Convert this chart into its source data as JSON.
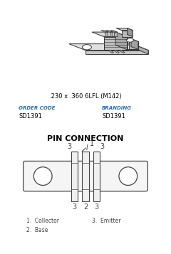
{
  "bg_color": "#ffffff",
  "border_color": "#555555",
  "text_color": "#000000",
  "blue_color": "#2e6da4",
  "title_color": "#000000",
  "draw_color": "#333333",
  "top_box": {
    "package_text": ".230 x .360 6LFL (M142)",
    "order_code_label": "ORDER CODE",
    "order_code_value": "SD1391",
    "branding_label": "BRANDING",
    "branding_value": "SD1391"
  },
  "bottom_box": {
    "title": "PIN CONNECTION",
    "pin_labels_top_left": "3",
    "pin_labels_top_mid": "1",
    "pin_labels_top_right": "3",
    "pin_labels_bot_left": "3",
    "pin_labels_bot_mid": "2",
    "pin_labels_bot_right": "3",
    "legend_1": "1.  Collector",
    "legend_2": "3.  Emitter",
    "legend_3": "2.  Base"
  }
}
